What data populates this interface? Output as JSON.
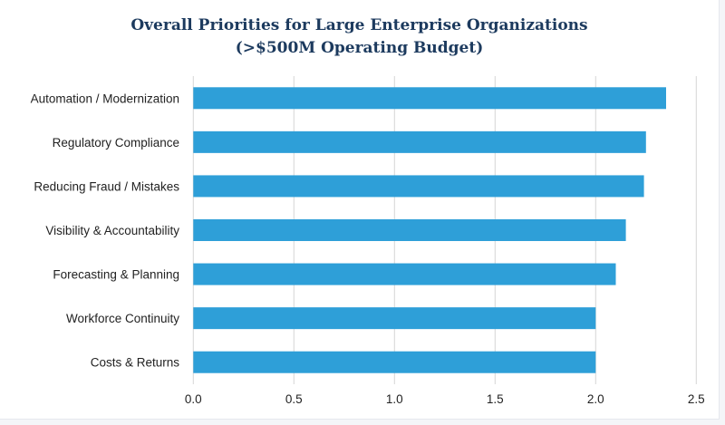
{
  "chart_data": {
    "type": "bar",
    "orientation": "horizontal",
    "title": [
      "Overall Priorities for Large Enterprise Organizations",
      "(>$500M Operating Budget)"
    ],
    "categories": [
      "Automation / Modernization",
      "Regulatory Compliance",
      "Reducing Fraud / Mistakes",
      "Visibility & Accountability",
      "Forecasting & Planning",
      "Workforce Continuity",
      "Costs & Returns"
    ],
    "values": [
      2.35,
      2.25,
      2.24,
      2.15,
      2.1,
      2.0,
      2.0
    ],
    "xlim": [
      0,
      2.5
    ],
    "xticks": [
      "0.0",
      "0.5",
      "1.0",
      "1.5",
      "2.0",
      "2.5"
    ],
    "grid": "vertical",
    "bar_color": "#2e9fd8",
    "xlabel": "",
    "ylabel": ""
  }
}
